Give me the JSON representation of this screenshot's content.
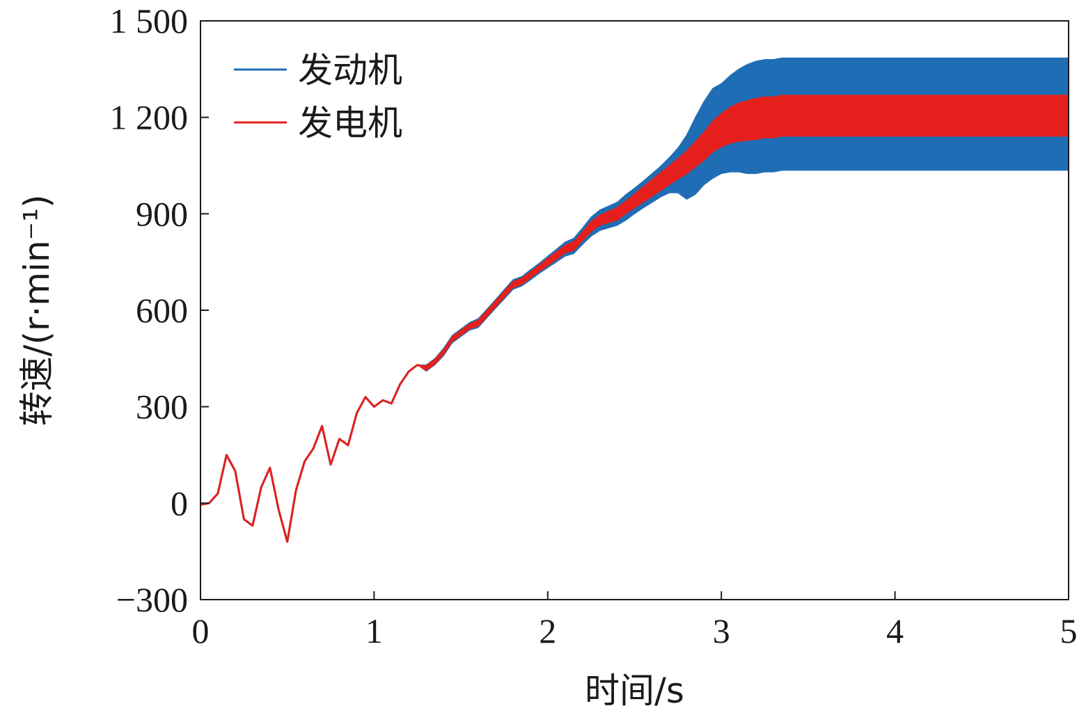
{
  "chart_data": {
    "type": "line",
    "xlabel": "时间/s",
    "ylabel": "转速/(r·min⁻¹)",
    "xlim": [
      0,
      5
    ],
    "ylim": [
      -300,
      1500
    ],
    "x_ticks": [
      0,
      1,
      2,
      3,
      4,
      5
    ],
    "x_tick_labels": [
      "0",
      "1",
      "2",
      "3",
      "4",
      "5"
    ],
    "y_ticks": [
      -300,
      0,
      300,
      600,
      900,
      1200,
      1500
    ],
    "y_tick_labels": [
      "−300",
      "0",
      "300",
      "600",
      "900",
      "1 200",
      "1 500"
    ],
    "grid": false,
    "legend_position": "top-left",
    "x": [
      0,
      0.05,
      0.1,
      0.15,
      0.2,
      0.25,
      0.3,
      0.35,
      0.4,
      0.45,
      0.5,
      0.55,
      0.6,
      0.65,
      0.7,
      0.75,
      0.8,
      0.85,
      0.9,
      0.95,
      1.0,
      1.05,
      1.1,
      1.15,
      1.2,
      1.25,
      1.3,
      1.35,
      1.4,
      1.45,
      1.5,
      1.55,
      1.6,
      1.65,
      1.7,
      1.75,
      1.8,
      1.85,
      1.9,
      1.95,
      2.0,
      2.05,
      2.1,
      2.15,
      2.2,
      2.25,
      2.3,
      2.35,
      2.4,
      2.45,
      2.5,
      2.55,
      2.6,
      2.65,
      2.7,
      2.75,
      2.8,
      2.85,
      2.9,
      2.95,
      3.0,
      3.05,
      3.1,
      3.15,
      3.2,
      3.25,
      3.3,
      3.35,
      3.4,
      3.45,
      3.5,
      3.55,
      3.6,
      3.65,
      3.7,
      3.75,
      3.8,
      3.85,
      3.9,
      3.95,
      4.0,
      4.05,
      4.1,
      4.15,
      4.2,
      4.25,
      4.3,
      4.35,
      4.4,
      4.45,
      4.5,
      4.55,
      4.6,
      4.65,
      4.7,
      4.75,
      4.8,
      4.85,
      4.9,
      4.95,
      5.0
    ],
    "series": [
      {
        "name": "发动机",
        "color": "#1f6eb5",
        "values": [
          -5,
          0,
          30,
          150,
          100,
          -50,
          -70,
          50,
          110,
          -20,
          -120,
          40,
          130,
          170,
          240,
          120,
          200,
          180,
          280,
          330,
          300,
          320,
          310,
          370,
          410,
          430,
          420,
          440,
          470,
          510,
          530,
          550,
          560,
          590,
          620,
          650,
          680,
          690,
          710,
          730,
          750,
          770,
          790,
          800,
          830,
          860,
          880,
          890,
          900,
          920,
          940,
          960,
          980,
          1000,
          1020,
          1035,
          1045,
          1080,
          1120,
          1150,
          1165,
          1180,
          1190,
          1195,
          1200,
          1205,
          1205,
          1210,
          1210,
          1210,
          1210,
          1210,
          1210,
          1210,
          1210,
          1210,
          1210,
          1210,
          1210,
          1210,
          1210,
          1210,
          1210,
          1210,
          1210,
          1210,
          1210,
          1210,
          1210,
          1210,
          1210,
          1210,
          1210,
          1210,
          1210,
          1210,
          1210,
          1210,
          1210,
          1210,
          1210
        ],
        "band": [
          0,
          0,
          0,
          0,
          0,
          0,
          0,
          0,
          0,
          0,
          0,
          0,
          0,
          0,
          0,
          0,
          0,
          0,
          0,
          0,
          0,
          0,
          0,
          0,
          0,
          0,
          10,
          10,
          12,
          12,
          12,
          12,
          14,
          14,
          14,
          15,
          15,
          15,
          16,
          16,
          18,
          20,
          22,
          24,
          26,
          30,
          32,
          34,
          36,
          40,
          40,
          42,
          45,
          48,
          55,
          70,
          100,
          120,
          130,
          140,
          140,
          150,
          160,
          170,
          175,
          175,
          175,
          175,
          175,
          175,
          175,
          175,
          175,
          175,
          175,
          175,
          175,
          175,
          175,
          175,
          175,
          175,
          175,
          175,
          175,
          175,
          175,
          175,
          175,
          175,
          175,
          175,
          175,
          175,
          175,
          175,
          175,
          175,
          175,
          175,
          175
        ]
      },
      {
        "name": "发电机",
        "color": "#e5201c",
        "values": [
          -5,
          0,
          30,
          150,
          100,
          -50,
          -70,
          50,
          110,
          -20,
          -120,
          40,
          130,
          170,
          240,
          120,
          200,
          180,
          280,
          330,
          300,
          320,
          310,
          370,
          410,
          430,
          420,
          440,
          470,
          510,
          530,
          550,
          560,
          590,
          620,
          650,
          680,
          690,
          710,
          730,
          750,
          770,
          790,
          800,
          830,
          860,
          880,
          890,
          900,
          920,
          940,
          960,
          980,
          1000,
          1020,
          1040,
          1060,
          1085,
          1110,
          1140,
          1160,
          1175,
          1185,
          1190,
          1195,
          1200,
          1200,
          1205,
          1205,
          1205,
          1205,
          1205,
          1205,
          1205,
          1205,
          1205,
          1205,
          1205,
          1205,
          1205,
          1205,
          1205,
          1205,
          1205,
          1205,
          1205,
          1205,
          1205,
          1205,
          1205,
          1205,
          1205,
          1205,
          1205,
          1205,
          1205,
          1205,
          1205,
          1205,
          1205,
          1205
        ],
        "band": [
          0,
          0,
          0,
          0,
          0,
          0,
          0,
          0,
          0,
          0,
          0,
          0,
          0,
          0,
          0,
          0,
          0,
          0,
          0,
          0,
          0,
          0,
          0,
          0,
          0,
          0,
          8,
          8,
          8,
          8,
          8,
          8,
          10,
          10,
          10,
          10,
          10,
          10,
          10,
          10,
          12,
          12,
          12,
          14,
          14,
          16,
          16,
          18,
          20,
          20,
          22,
          24,
          26,
          28,
          30,
          32,
          36,
          40,
          44,
          48,
          52,
          56,
          60,
          62,
          64,
          64,
          64,
          64,
          64,
          64,
          64,
          64,
          64,
          64,
          64,
          64,
          64,
          64,
          64,
          64,
          64,
          64,
          64,
          64,
          64,
          64,
          64,
          64,
          64,
          64,
          64,
          64,
          64,
          64,
          64,
          64,
          64,
          64,
          64,
          64,
          64
        ]
      }
    ]
  }
}
